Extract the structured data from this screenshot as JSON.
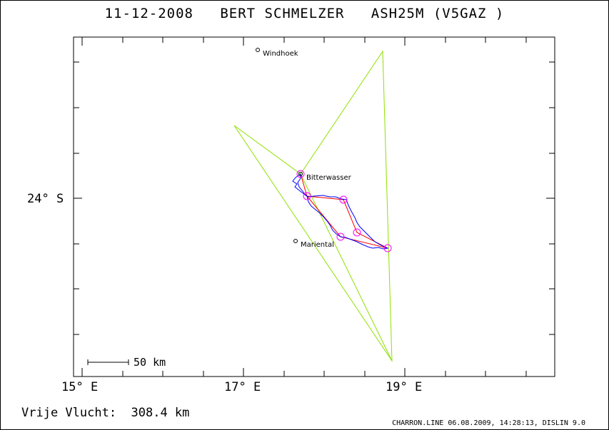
{
  "header": {
    "title": "11-12-2008   BERT SCHMELZER   ASH25M (V5GAZ )"
  },
  "axes": {
    "x_ticks": [
      "15° E",
      "17° E",
      "19° E"
    ],
    "y_tick": "24° S"
  },
  "places": {
    "windhoek": "Windhoek",
    "bitterwasser": "Bitterwasser",
    "mariental": "Mariental"
  },
  "scale_bar": {
    "label": "50 km"
  },
  "footer": {
    "distance": "Vrije Vlucht:  308.4 km",
    "credit": "CHARRON.LINE 06.08.2009, 14:28:13, DISLIN 9.0"
  },
  "colors": {
    "sector": "#8fe000",
    "task": "#ff0000",
    "track": "#0000ff",
    "turnpoint": "#ff00ff"
  }
}
